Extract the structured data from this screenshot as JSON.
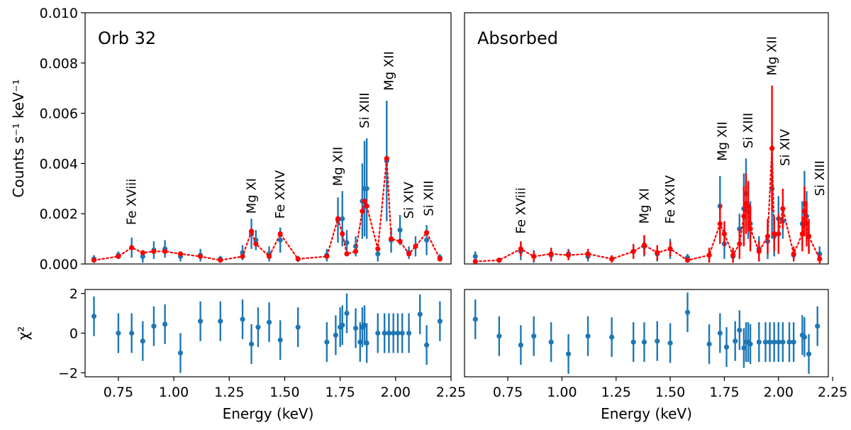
{
  "chart_data": [
    {
      "type": "scatter",
      "panel": "top-left",
      "title": "Orb 32",
      "ylabel": "Counts s⁻¹ keV⁻¹",
      "xlim": [
        0.6,
        2.25
      ],
      "ylim": [
        0,
        0.01
      ],
      "yticks": [
        0,
        0.002,
        0.004,
        0.006,
        0.008,
        0.01
      ],
      "ytick_labels": [
        "0.000",
        "0.002",
        "0.004",
        "0.006",
        "0.008",
        "0.010"
      ],
      "colors": {
        "data": "#1f77b4",
        "model": "#ff0000"
      },
      "series": [
        {
          "name": "data",
          "x": [
            0.64,
            0.75,
            0.81,
            0.86,
            0.91,
            0.96,
            1.03,
            1.12,
            1.21,
            1.31,
            1.35,
            1.37,
            1.43,
            1.48,
            1.56,
            1.69,
            1.74,
            1.76,
            1.78,
            1.82,
            1.85,
            1.86,
            1.87,
            1.92,
            1.96,
            1.98,
            2.02,
            2.06,
            2.09,
            2.14,
            2.2
          ],
          "y": [
            0.0002,
            0.00035,
            0.00065,
            0.0003,
            0.00055,
            0.0006,
            0.0003,
            0.00035,
            0.0002,
            0.00045,
            0.0012,
            0.00095,
            0.0004,
            0.00095,
            0.0002,
            0.00035,
            0.00175,
            0.0018,
            0.00085,
            0.0007,
            0.0025,
            0.003,
            0.003,
            0.0004,
            0.0041,
            0.00095,
            0.00135,
            0.00045,
            0.0007,
            0.00095,
            0.00025
          ],
          "err": [
            0.00015,
            0.00015,
            0.0004,
            0.00025,
            0.00035,
            0.00035,
            0.0002,
            0.00025,
            0.00012,
            0.0003,
            0.0006,
            0.0004,
            0.0003,
            0.0005,
            0.00012,
            0.00025,
            0.0009,
            0.0011,
            0.0005,
            0.0004,
            0.0015,
            0.0019,
            0.002,
            0.0003,
            0.0024,
            0.0005,
            0.0006,
            0.00025,
            0.0004,
            0.0006,
            0.00015
          ]
        },
        {
          "name": "model",
          "x": [
            0.64,
            0.75,
            0.81,
            0.86,
            0.91,
            0.96,
            1.03,
            1.12,
            1.21,
            1.31,
            1.35,
            1.37,
            1.43,
            1.48,
            1.56,
            1.69,
            1.74,
            1.76,
            1.78,
            1.82,
            1.85,
            1.86,
            1.87,
            1.92,
            1.96,
            1.98,
            2.02,
            2.06,
            2.09,
            2.14,
            2.2
          ],
          "y": [
            0.00015,
            0.0003,
            0.00065,
            0.00045,
            0.0005,
            0.0005,
            0.0004,
            0.0003,
            0.00015,
            0.0003,
            0.0013,
            0.0008,
            0.0003,
            0.0012,
            0.0002,
            0.0003,
            0.0018,
            0.0012,
            0.0004,
            0.0005,
            0.0021,
            0.0025,
            0.0023,
            0.0006,
            0.0042,
            0.001,
            0.0009,
            0.0004,
            0.0007,
            0.00125,
            0.0002
          ]
        }
      ],
      "annotations": [
        {
          "text": "Fe XViii",
          "x": 0.81,
          "y": 0.00155
        },
        {
          "text": "Mg  XI",
          "x": 1.35,
          "y": 0.002
        },
        {
          "text": "Fe XXIV",
          "x": 1.48,
          "y": 0.0018
        },
        {
          "text": "Mg  XII",
          "x": 1.74,
          "y": 0.0031
        },
        {
          "text": "Si XIII",
          "x": 1.86,
          "y": 0.0054
        },
        {
          "text": "Mg  XII",
          "x": 1.97,
          "y": 0.0069
        },
        {
          "text": "Si XIV",
          "x": 2.06,
          "y": 0.0018
        },
        {
          "text": "Si XIII",
          "x": 2.15,
          "y": 0.0019
        }
      ]
    },
    {
      "type": "scatter",
      "panel": "top-right",
      "title": "Absorbed",
      "xlim": [
        0.55,
        2.23
      ],
      "ylim": [
        0,
        0.01
      ],
      "colors": {
        "data": "#1f77b4",
        "model": "#ff0000"
      },
      "series": [
        {
          "name": "data",
          "x": [
            0.6,
            0.71,
            0.81,
            0.87,
            0.95,
            1.03,
            1.12,
            1.23,
            1.33,
            1.38,
            1.44,
            1.5,
            1.58,
            1.68,
            1.73,
            1.75,
            1.79,
            1.82,
            1.84,
            1.85,
            1.86,
            1.87,
            1.91,
            1.95,
            1.97,
            1.98,
            2.0,
            2.02,
            2.07,
            2.11,
            2.12,
            2.13,
            2.14,
            2.19
          ],
          "y": [
            0.0003,
            0.00015,
            0.0005,
            0.0003,
            0.00035,
            0.0004,
            0.0003,
            0.0002,
            0.0005,
            0.0007,
            0.0004,
            0.0006,
            0.00025,
            0.00035,
            0.0023,
            0.0008,
            0.0003,
            0.0014,
            0.0022,
            0.0028,
            0.0021,
            0.0016,
            0.0006,
            0.0009,
            0.003,
            0.0011,
            0.0018,
            0.0017,
            0.00035,
            0.0016,
            0.0024,
            0.0019,
            0.0011,
            0.0004
          ],
          "err": [
            0.0002,
            0.0001,
            0.00035,
            0.00025,
            0.00025,
            0.0002,
            0.0002,
            0.00012,
            0.00025,
            0.0004,
            0.0003,
            0.0004,
            0.00015,
            0.00025,
            0.0012,
            0.0006,
            0.0002,
            0.0006,
            0.0014,
            0.0014,
            0.0011,
            0.0009,
            0.0005,
            0.0007,
            0.002,
            0.0008,
            0.0009,
            0.0007,
            0.00025,
            0.0009,
            0.0013,
            0.001,
            0.0006,
            0.0003
          ]
        },
        {
          "name": "model",
          "x": [
            0.6,
            0.71,
            0.81,
            0.87,
            0.95,
            1.03,
            1.12,
            1.23,
            1.33,
            1.38,
            1.44,
            1.5,
            1.58,
            1.68,
            1.73,
            1.75,
            1.79,
            1.82,
            1.84,
            1.85,
            1.86,
            1.87,
            1.91,
            1.95,
            1.97,
            1.98,
            2.0,
            2.02,
            2.07,
            2.11,
            2.12,
            2.13,
            2.14,
            2.19
          ],
          "y": [
            0.0001,
            0.00015,
            0.0006,
            0.0003,
            0.0004,
            0.00035,
            0.0004,
            0.0002,
            0.0005,
            0.00075,
            0.00045,
            0.0006,
            0.00015,
            0.00035,
            0.0016,
            0.0012,
            0.00035,
            0.0008,
            0.0019,
            0.0024,
            0.0023,
            0.0014,
            0.0005,
            0.0011,
            0.0046,
            0.0012,
            0.0012,
            0.0022,
            0.0004,
            0.0012,
            0.0021,
            0.0016,
            0.0011,
            0.0002
          ],
          "err": [
            0.0001,
            0.0001,
            0.0003,
            0.0002,
            0.00025,
            0.0002,
            0.0002,
            0.00015,
            0.0003,
            0.0004,
            0.0003,
            0.0003,
            0.0001,
            0.0003,
            0.0008,
            0.0005,
            0.0003,
            0.0006,
            0.0012,
            0.0012,
            0.001,
            0.0009,
            0.0004,
            0.0007,
            0.0025,
            0.0007,
            0.0008,
            0.0008,
            0.0003,
            0.0007,
            0.001,
            0.0009,
            0.0007,
            0.0002
          ]
        }
      ],
      "annotations": [
        {
          "text": "Fe XViii",
          "x": 0.81,
          "y": 0.0012
        },
        {
          "text": "Mg  XI",
          "x": 1.38,
          "y": 0.0016
        },
        {
          "text": "Fe XXIV",
          "x": 1.5,
          "y": 0.0016
        },
        {
          "text": "Mg  XII",
          "x": 1.74,
          "y": 0.0041
        },
        {
          "text": "Si XIII",
          "x": 1.86,
          "y": 0.0046
        },
        {
          "text": "Mg  XII",
          "x": 1.97,
          "y": 0.0075
        },
        {
          "text": "Si XIV",
          "x": 2.03,
          "y": 0.0039
        },
        {
          "text": "Si XIII",
          "x": 2.19,
          "y": 0.0027
        }
      ]
    },
    {
      "type": "scatter",
      "panel": "bottom-left",
      "xlabel": "Energy (keV)",
      "ylabel": "χ²",
      "xlim": [
        0.6,
        2.25
      ],
      "ylim": [
        -2.2,
        2.2
      ],
      "xticks": [
        0.75,
        1.0,
        1.25,
        1.5,
        1.75,
        2.0,
        2.25
      ],
      "xtick_labels": [
        "0.75",
        "1.00",
        "1.25",
        "1.50",
        "1.75",
        "2.00",
        "2.25"
      ],
      "yticks": [
        -2,
        0,
        2
      ],
      "ytick_labels": [
        "−2",
        "0",
        "2"
      ],
      "colors": {
        "data": "#1f77b4"
      },
      "series": [
        {
          "name": "residuals",
          "x": [
            0.64,
            0.75,
            0.81,
            0.86,
            0.91,
            0.96,
            1.03,
            1.12,
            1.21,
            1.31,
            1.35,
            1.38,
            1.43,
            1.48,
            1.56,
            1.69,
            1.73,
            1.75,
            1.76,
            1.78,
            1.82,
            1.84,
            1.85,
            1.86,
            1.87,
            1.92,
            1.95,
            1.97,
            1.99,
            2.01,
            2.03,
            2.06,
            2.11,
            2.14,
            2.2
          ],
          "y": [
            0.85,
            0.0,
            0.0,
            -0.4,
            0.35,
            0.45,
            -1.0,
            0.6,
            0.6,
            0.7,
            -0.55,
            0.3,
            0.55,
            -0.35,
            0.3,
            -0.45,
            -0.1,
            0.3,
            0.4,
            1.0,
            0.25,
            -0.45,
            0.3,
            0.4,
            -0.5,
            0.0,
            0.0,
            0.0,
            0.0,
            0.0,
            0.0,
            0.0,
            0.95,
            -0.6,
            0.6
          ],
          "err": [
            1.0,
            1.0,
            1.0,
            1.0,
            1.0,
            1.0,
            1.0,
            1.0,
            1.0,
            1.0,
            1.0,
            1.0,
            1.0,
            1.0,
            1.0,
            1.0,
            1.0,
            1.0,
            1.0,
            1.0,
            1.0,
            1.0,
            1.0,
            1.0,
            1.0,
            1.0,
            1.0,
            1.0,
            1.0,
            1.0,
            1.0,
            1.0,
            1.0,
            1.0,
            1.0
          ]
        }
      ]
    },
    {
      "type": "scatter",
      "panel": "bottom-right",
      "xlabel": "Energy (keV)",
      "xlim": [
        0.55,
        2.23
      ],
      "ylim": [
        -2.2,
        2.2
      ],
      "xticks": [
        0.75,
        1.0,
        1.25,
        1.5,
        1.75,
        2.0,
        2.25
      ],
      "xtick_labels": [
        "0.75",
        "1.00",
        "1.25",
        "1.50",
        "1.75",
        "2.00",
        "2.25"
      ],
      "colors": {
        "data": "#1f77b4"
      },
      "series": [
        {
          "name": "residuals",
          "x": [
            0.6,
            0.71,
            0.81,
            0.87,
            0.95,
            1.03,
            1.12,
            1.23,
            1.33,
            1.38,
            1.44,
            1.5,
            1.58,
            1.68,
            1.73,
            1.76,
            1.8,
            1.82,
            1.84,
            1.85,
            1.86,
            1.87,
            1.91,
            1.94,
            1.96,
            1.98,
            2.0,
            2.02,
            2.05,
            2.07,
            2.11,
            2.12,
            2.14,
            2.18
          ],
          "y": [
            0.7,
            -0.15,
            -0.6,
            -0.15,
            -0.45,
            -1.05,
            -0.15,
            -0.2,
            -0.45,
            -0.45,
            -0.4,
            -0.5,
            1.05,
            -0.55,
            0.0,
            -0.7,
            -0.4,
            0.15,
            -0.75,
            -0.45,
            -0.45,
            -0.55,
            -0.45,
            -0.45,
            -0.45,
            -0.45,
            -0.45,
            -0.45,
            -0.45,
            -0.45,
            -0.1,
            -0.2,
            -1.05,
            0.35
          ],
          "err": [
            1.0,
            1.0,
            1.0,
            1.0,
            1.0,
            1.0,
            1.0,
            1.0,
            1.0,
            1.0,
            1.0,
            1.0,
            1.0,
            1.0,
            1.0,
            1.0,
            1.0,
            1.0,
            1.0,
            1.0,
            1.0,
            1.0,
            1.0,
            1.0,
            1.0,
            1.0,
            1.0,
            1.0,
            1.0,
            1.0,
            1.0,
            1.0,
            1.0,
            1.0
          ]
        }
      ]
    }
  ]
}
